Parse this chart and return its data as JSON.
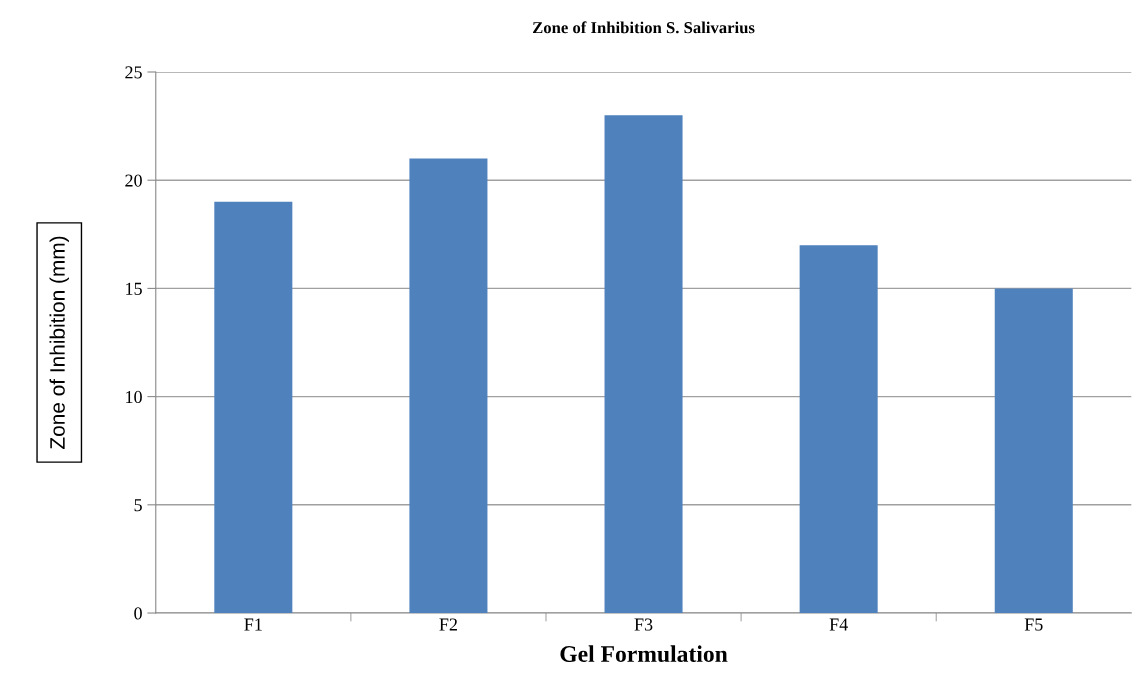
{
  "chart_data": {
    "type": "bar",
    "title": "Zone of Inhibition S. Salivarius",
    "xlabel": "Gel Formulation",
    "ylabel": "Zone of Inhibition (mm)",
    "categories": [
      "F1",
      "F2",
      "F3",
      "F4",
      "F5"
    ],
    "values": [
      19,
      21,
      23,
      17,
      15
    ],
    "color": "#4f81bd",
    "ylim": [
      0,
      25
    ],
    "yticks": [
      0,
      5,
      10,
      15,
      20,
      25
    ],
    "grid": "y",
    "legend": false
  }
}
